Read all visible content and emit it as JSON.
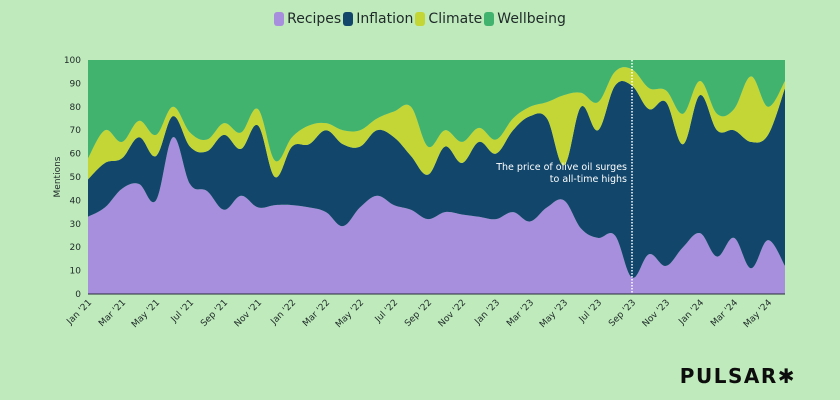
{
  "chart_data": {
    "type": "area",
    "stacked": true,
    "title": "",
    "xlabel": "",
    "ylabel": "Mentions",
    "ylim": [
      0,
      100
    ],
    "yticks": [
      0,
      10,
      20,
      30,
      40,
      50,
      60,
      70,
      80,
      90,
      100
    ],
    "legend_position": "top-center",
    "grid": false,
    "x": [
      "Jan '21",
      "Feb '21",
      "Mar '21",
      "Apr '21",
      "May '21",
      "Jun '21",
      "Jul '21",
      "Aug '21",
      "Sep '21",
      "Oct '21",
      "Nov '21",
      "Dec '21",
      "Jan '22",
      "Feb '22",
      "Mar '22",
      "Apr '22",
      "May '22",
      "Jun '22",
      "Jul '22",
      "Aug '22",
      "Sep '22",
      "Oct '22",
      "Nov '22",
      "Dec '22",
      "Jan '23",
      "Feb '23",
      "Mar '23",
      "Apr '23",
      "May '23",
      "Jun '23",
      "Jul '23",
      "Aug '23",
      "Sep '23",
      "Oct '23",
      "Nov '23",
      "Dec '23",
      "Jan '24",
      "Feb '24",
      "Mar '24",
      "Apr '24",
      "May '24",
      "Jun '24"
    ],
    "xtick_labels": [
      "Jan '21",
      "Mar '21",
      "May '21",
      "Jul '21",
      "Sep '21",
      "Nov '21",
      "Jan '22",
      "Mar '22",
      "May '22",
      "Jul '22",
      "Sep '22",
      "Nov '22",
      "Jan '23",
      "Mar '23",
      "May '23",
      "Jul '23",
      "Sep '23",
      "Nov '23",
      "Jan '24",
      "Mar '24",
      "May '24"
    ],
    "series": [
      {
        "name": "Recipes",
        "color": "#a78fdd",
        "values": [
          33,
          37,
          45,
          47,
          40,
          67,
          47,
          44,
          36,
          42,
          37,
          38,
          38,
          37,
          35,
          29,
          37,
          42,
          38,
          36,
          32,
          35,
          34,
          33,
          32,
          35,
          31,
          37,
          40,
          28,
          24,
          25,
          7,
          17,
          12,
          20,
          26,
          16,
          24,
          11,
          23,
          12
        ]
      },
      {
        "name": "Inflation",
        "color": "#12476b",
        "values": [
          16,
          19,
          13,
          20,
          19,
          9,
          16,
          17,
          32,
          20,
          35,
          12,
          25,
          27,
          35,
          35,
          26,
          28,
          29,
          23,
          19,
          28,
          22,
          32,
          28,
          35,
          45,
          38,
          15,
          52,
          46,
          64,
          82,
          62,
          70,
          44,
          59,
          54,
          46,
          54,
          45,
          76
        ]
      },
      {
        "name": "Climate",
        "color": "#c3d636",
        "values": [
          9,
          14,
          7,
          7,
          9,
          4,
          6,
          5,
          5,
          7,
          7,
          7,
          4,
          8,
          3,
          6,
          7,
          5,
          11,
          21,
          12,
          7,
          9,
          6,
          6,
          5,
          4,
          7,
          30,
          6,
          12,
          6,
          7,
          9,
          5,
          13,
          6,
          7,
          9,
          28,
          12,
          3
        ]
      },
      {
        "name": "Wellbeing",
        "color": "#42b36e",
        "values": [
          42,
          30,
          35,
          26,
          32,
          20,
          31,
          34,
          27,
          31,
          21,
          43,
          33,
          28,
          27,
          30,
          30,
          25,
          22,
          20,
          37,
          30,
          35,
          29,
          34,
          25,
          20,
          18,
          15,
          14,
          18,
          5,
          4,
          12,
          13,
          23,
          9,
          23,
          21,
          7,
          20,
          9
        ]
      }
    ],
    "annotations": [
      {
        "x": "Sep '23",
        "type": "vertical-dotted-line",
        "text_lines": [
          "The price of olive oil surges",
          "to all-time highs"
        ]
      }
    ]
  },
  "legend": {
    "items": [
      {
        "label": "Recipes",
        "color": "#a78fdd"
      },
      {
        "label": "Inflation",
        "color": "#12476b"
      },
      {
        "label": "Climate",
        "color": "#c3d636"
      },
      {
        "label": "Wellbeing",
        "color": "#42b36e"
      }
    ]
  },
  "brand": {
    "name": "PULSAR",
    "mark": "✱"
  },
  "colors": {
    "background": "#bfeabb",
    "axis": "#2a2a3a",
    "text": "#1f2a2a"
  }
}
